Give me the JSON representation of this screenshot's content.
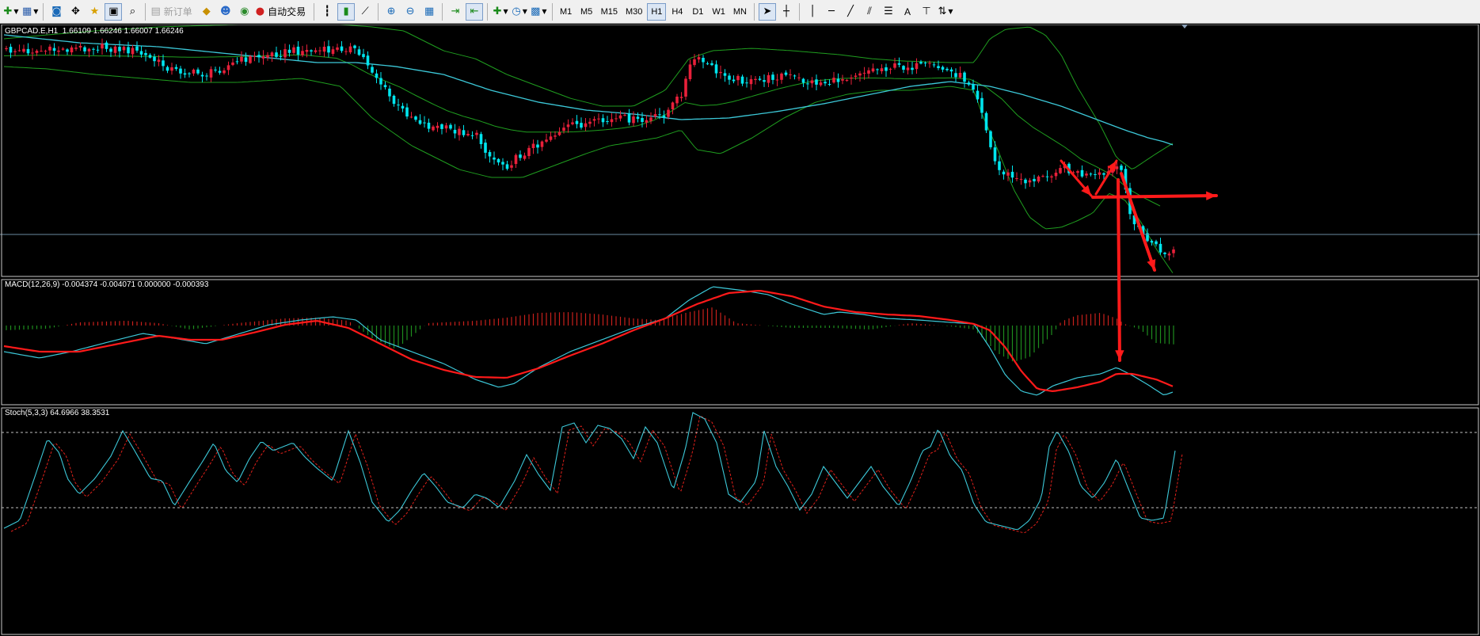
{
  "toolbar": {
    "new_order_label": "新订单",
    "auto_trading_label": "自动交易",
    "timeframes": [
      "M1",
      "M5",
      "M15",
      "M30",
      "H1",
      "H4",
      "D1",
      "W1",
      "MN"
    ],
    "active_timeframe": "H1",
    "text_tool_label": "A"
  },
  "main_panel": {
    "label": "GBPCAD.E,H1  1.66109 1.66246 1.66007 1.66246"
  },
  "macd_panel": {
    "label": "MACD(12,26,9) -0.004374 -0.004071 0.000000 -0.000393"
  },
  "stoch_panel": {
    "label": "Stoch(5,3,3) 64.6966 38.3531"
  },
  "colors": {
    "background": "#000000",
    "bull_candle": "#e8203a",
    "bear_candle": "#00e5ee",
    "bollinger": "#1f9d1f",
    "moving_average": "#3cc8d8",
    "macd_line": "#3cc8d8",
    "signal_line": "#ff1a1a",
    "hist_positive": "#c8201c",
    "hist_negative": "#1e8c1e",
    "annotation_arrow": "#ff1a1a"
  }
}
